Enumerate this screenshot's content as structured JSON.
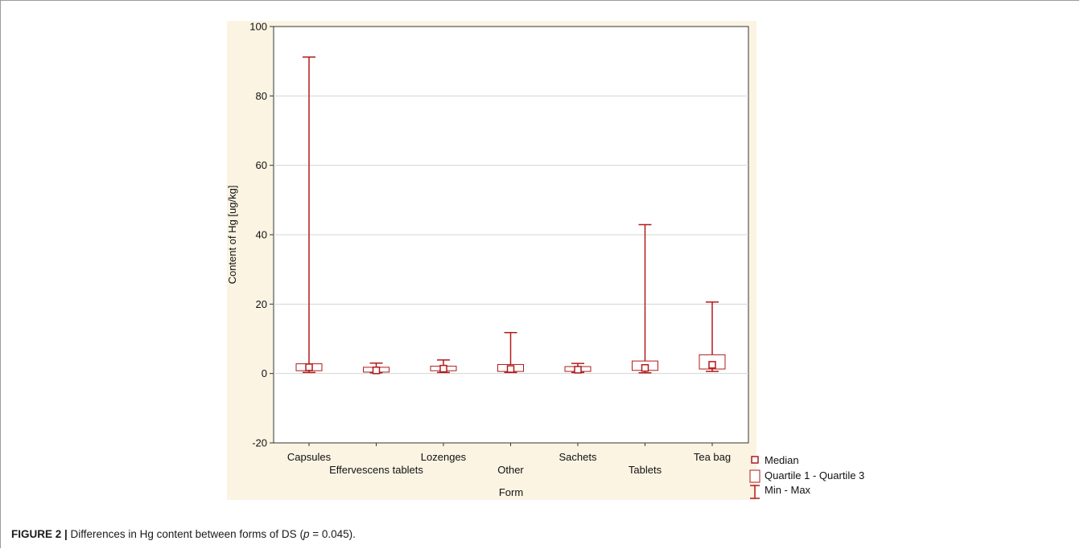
{
  "caption": {
    "label": "FIGURE 2 |",
    "text_before_p": " Differences in Hg content between forms of DS (",
    "p_symbol": "p",
    "text_after_p": " = 0.045)."
  },
  "colors": {
    "panel_bg": "#fbf4e3",
    "plot_bg": "#ffffff",
    "series": "#b01a1a",
    "grid": "#d4d4d4"
  },
  "chart_data": {
    "type": "boxplot",
    "xlabel": "Form",
    "ylabel": "Content of Hg [ug/kg]",
    "ylim": [
      -20,
      100
    ],
    "yticks": [
      -20,
      0,
      20,
      40,
      60,
      80,
      100
    ],
    "grid": true,
    "legend_position": "bottom-right outside plot",
    "legend": [
      "Median",
      "Quartile 1 - Quartile 3",
      "Min - Max"
    ],
    "categories": [
      "Capsules",
      "Effervescens tablets",
      "Lozenges",
      "Other",
      "Sachets",
      "Tablets",
      "Tea bag"
    ],
    "boxes": [
      {
        "category": "Capsules",
        "min": 0.3,
        "q1": 0.8,
        "median": 1.8,
        "q3": 2.8,
        "max": 91.2
      },
      {
        "category": "Effervescens tablets",
        "min": 0.2,
        "q1": 0.4,
        "median": 0.9,
        "q3": 1.8,
        "max": 3.0
      },
      {
        "category": "Lozenges",
        "min": 0.3,
        "q1": 0.8,
        "median": 1.4,
        "q3": 2.1,
        "max": 3.9
      },
      {
        "category": "Other",
        "min": 0.3,
        "q1": 0.6,
        "median": 1.3,
        "q3": 2.6,
        "max": 11.8
      },
      {
        "category": "Sachets",
        "min": 0.3,
        "q1": 0.6,
        "median": 1.1,
        "q3": 2.0,
        "max": 2.9
      },
      {
        "category": "Tablets",
        "min": 0.2,
        "q1": 0.9,
        "median": 1.6,
        "q3": 3.6,
        "max": 42.9
      },
      {
        "category": "Tea bag",
        "min": 0.6,
        "q1": 1.3,
        "median": 2.5,
        "q3": 5.4,
        "max": 20.6
      }
    ]
  }
}
